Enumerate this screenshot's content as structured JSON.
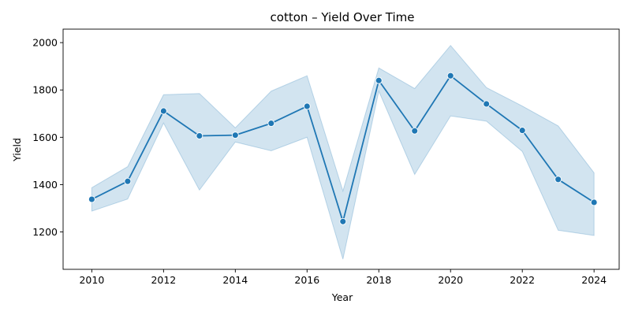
{
  "chart_data": {
    "type": "line",
    "title": "cotton – Yield Over Time",
    "xlabel": "Year",
    "ylabel": "Yield",
    "xlim": [
      2009.2,
      2024.7
    ],
    "ylim": [
      1042,
      2057
    ],
    "x_ticks": [
      2010,
      2012,
      2014,
      2016,
      2018,
      2020,
      2022,
      2024
    ],
    "y_ticks": [
      1200,
      1400,
      1600,
      1800,
      2000
    ],
    "grid": false,
    "legend": "none",
    "series": [
      {
        "color": "#1f77b4",
        "band_color": "#1f77b4",
        "x": [
          2010,
          2011,
          2012,
          2013,
          2014,
          2015,
          2016,
          2017,
          2018,
          2019,
          2020,
          2021,
          2022,
          2023,
          2024
        ],
        "values": [
          1338,
          1414,
          1711,
          1606,
          1609,
          1659,
          1731,
          1244,
          1840,
          1627,
          1860,
          1741,
          1629,
          1422,
          1325
        ],
        "upper": [
          1387,
          1476,
          1780,
          1785,
          1640,
          1795,
          1860,
          1373,
          1893,
          1806,
          1988,
          1810,
          1732,
          1648,
          1450
        ],
        "lower": [
          1288,
          1339,
          1660,
          1377,
          1580,
          1543,
          1600,
          1085,
          1795,
          1443,
          1690,
          1668,
          1540,
          1207,
          1185
        ]
      }
    ]
  }
}
